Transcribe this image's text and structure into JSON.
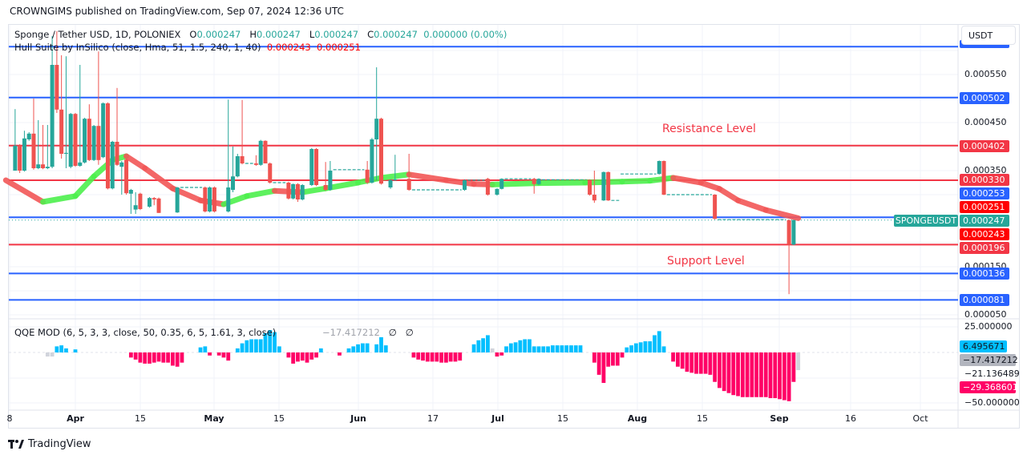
{
  "published": "CROWNGIMS published on TradingView.com, Sep 07, 2024 12:36 UTC",
  "legend": {
    "symbol": "Sponge / Tether USD, 1D, POLONIEX",
    "o_label": "O",
    "o": "0.000247",
    "h_label": "H",
    "h": "0.000247",
    "l_label": "L",
    "l": "0.000247",
    "c_label": "C",
    "c": "0.000247",
    "change": "0.000000 (0.00%)",
    "hull": "Hull Suite by InSilico (close, Hma, 51, 1.5, 240, 1, 40)",
    "hull_v1": "0.000243",
    "hull_v2": "0.000251",
    "qqe": "QQE MOD (6, 5, 3, 3, close, 50, 0.35, 6, 5, 1.61, 3, close)",
    "qqe_value": "−17.417212",
    "qqe_na1": "∅",
    "qqe_na2": "∅"
  },
  "currency_button": "USDT",
  "annotations": {
    "resistance": "Resistance Level",
    "support": "Support Level"
  },
  "symbol_tag": "SPONGEUSDT",
  "colors": {
    "up": "#26a69a",
    "down": "#ef5350",
    "hull_up": "#4cf04c",
    "hull_down": "#f25757",
    "blue_line": "#2962ff",
    "red_line": "#f23645",
    "qqe_up": "#00bfff",
    "qqe_down": "#ff0066",
    "qqe_neutral": "#d1d4dc"
  },
  "price_axis": {
    "labels": [
      "0.000550",
      "0.000450",
      "0.000350",
      "0.000150",
      "0.000050"
    ],
    "tags": [
      {
        "text": "0.000502",
        "kind": "blue"
      },
      {
        "text": "0.000402",
        "kind": "red"
      },
      {
        "text": "0.000330",
        "kind": "red"
      },
      {
        "text": "0.000253",
        "kind": "blue"
      },
      {
        "text": "0.000251",
        "kind": "hull"
      },
      {
        "text": "0.000247",
        "kind": "last"
      },
      {
        "text": "0.000243",
        "kind": "hull"
      },
      {
        "text": "0.000196",
        "kind": "red"
      },
      {
        "text": "0.000136",
        "kind": "blue"
      },
      {
        "text": "0.000081",
        "kind": "blue"
      }
    ]
  },
  "qqe_axis": {
    "labels": [
      "25.000000",
      "−21.136489",
      "−50.000000"
    ],
    "tags": [
      {
        "text": "6.495671",
        "kind": "up"
      },
      {
        "text": "−17.417212",
        "kind": "neutral"
      },
      {
        "text": "−29.368601",
        "kind": "down"
      }
    ]
  },
  "x_axis": [
    "8",
    "Apr",
    "15",
    "May",
    "15",
    "Jun",
    "17",
    "Jul",
    "15",
    "Aug",
    "15",
    "Sep",
    "16",
    "Oct"
  ],
  "footer_brand": "TradingView",
  "chart_data": {
    "type": "candlestick",
    "price_range": [
      4e-05,
      0.000615
    ],
    "horizontal_levels": [
      {
        "price": 0.000608,
        "color": "blue"
      },
      {
        "price": 0.000502,
        "color": "blue"
      },
      {
        "price": 0.000402,
        "color": "red"
      },
      {
        "price": 0.00033,
        "color": "red"
      },
      {
        "price": 0.000253,
        "color": "blue"
      },
      {
        "price": 0.000196,
        "color": "red"
      },
      {
        "price": 0.000136,
        "color": "blue"
      },
      {
        "price": 8.1e-05,
        "color": "blue"
      }
    ],
    "last_price": 0.000247,
    "candles_ohlc": [
      [
        "2024-03-19",
        0.00035,
        0.000478,
        0.00035,
        0.000402
      ],
      [
        "2024-03-20",
        0.000402,
        0.000405,
        0.000345,
        0.00035
      ],
      [
        "2024-03-21",
        0.00035,
        0.000433,
        0.000348,
        0.000417
      ],
      [
        "2024-03-22",
        0.000415,
        0.00043,
        0.000412,
        0.000427
      ],
      [
        "2024-03-23",
        0.000427,
        0.0005,
        0.000352,
        0.000355
      ],
      [
        "2024-03-24",
        0.000355,
        0.000455,
        0.000353,
        0.000363
      ],
      [
        "2024-03-25",
        0.000363,
        0.000445,
        0.000353,
        0.000355
      ],
      [
        "2024-03-26",
        0.000355,
        0.000445,
        0.000353,
        0.000358
      ],
      [
        "2024-03-27",
        0.000358,
        0.00063,
        0.000355,
        0.00057
      ],
      [
        "2024-03-28",
        0.00057,
        0.00064,
        0.00047,
        0.000477
      ],
      [
        "2024-03-29",
        0.000477,
        0.00059,
        0.000375,
        0.000385
      ],
      [
        "2024-03-30",
        0.000385,
        0.000588,
        0.000355,
        0.000387
      ],
      [
        "2024-03-31",
        0.000358,
        0.00047,
        0.000355,
        0.000468
      ],
      [
        "2024-04-01",
        0.000468,
        0.00047,
        0.000358,
        0.00036
      ],
      [
        "2024-04-02",
        0.00036,
        0.00057,
        0.000358,
        0.000367
      ],
      [
        "2024-04-03",
        0.000367,
        0.00046,
        0.000365,
        0.000458
      ],
      [
        "2024-04-04",
        0.000458,
        0.000488,
        0.00037,
        0.000372
      ],
      [
        "2024-04-05",
        0.000372,
        0.000445,
        0.00037,
        0.000443
      ],
      [
        "2024-04-06",
        0.000443,
        0.000598,
        0.000362,
        0.000372
      ],
      [
        "2024-04-07",
        0.000378,
        0.000492,
        0.000376,
        0.00049
      ],
      [
        "2024-04-08",
        0.00049,
        0.000492,
        0.000311,
        0.000313
      ],
      [
        "2024-04-09",
        0.000313,
        0.000412,
        0.000311,
        0.00041
      ],
      [
        "2024-04-10",
        0.00041,
        0.000522,
        0.00036,
        0.000362
      ],
      [
        "2024-04-11",
        0.000358,
        0.00037,
        0.0003,
        0.000367
      ],
      [
        "2024-04-12",
        0.000373,
        0.000375,
        0.0003,
        0.000303
      ],
      [
        "2024-04-13",
        0.000302,
        0.000312,
        0.00026,
        0.00031
      ],
      [
        "2024-04-14",
        0.000269,
        0.000305,
        0.00026,
        0.000278
      ],
      [
        "2024-04-15",
        0.000302,
        0.000304,
        0.000268,
        0.00027
      ],
      [
        "2024-04-17",
        0.000275,
        0.000295,
        0.000273,
        0.000293
      ],
      [
        "2024-04-18",
        0.000293,
        0.000295,
        0.000278,
        0.00029
      ],
      [
        "2024-04-19",
        0.000292,
        0.000294,
        0.000262,
        0.000262
      ],
      [
        "2024-04-23",
        0.000263,
        0.000316,
        0.000262,
        0.000315
      ],
      [
        "2024-04-29",
        0.000315,
        0.000317,
        0.000263,
        0.000265
      ],
      [
        "2024-04-30",
        0.000265,
        0.000317,
        0.000263,
        0.000315
      ],
      [
        "2024-05-01",
        0.000315,
        0.000317,
        0.000263,
        0.000265
      ],
      [
        "2024-05-04",
        0.000265,
        0.000498,
        0.000263,
        0.000315
      ],
      [
        "2024-05-05",
        0.00031,
        0.0004,
        0.000305,
        0.000338
      ],
      [
        "2024-05-06",
        0.000338,
        0.000385,
        0.000336,
        0.00038
      ],
      [
        "2024-05-07",
        0.00038,
        0.000497,
        0.000363,
        0.000365
      ],
      [
        "2024-05-10",
        0.000365,
        0.000382,
        0.00036,
        0.000362
      ],
      [
        "2024-05-11",
        0.000362,
        0.000414,
        0.00036,
        0.000412
      ],
      [
        "2024-05-12",
        0.000412,
        0.000413,
        0.000365,
        0.000365
      ],
      [
        "2024-05-13",
        0.000365,
        0.000367,
        0.000323,
        0.000325
      ],
      [
        "2024-05-17",
        0.000325,
        0.000327,
        0.00029,
        0.000292
      ],
      [
        "2024-05-18",
        0.000292,
        0.000323,
        0.00029,
        0.000322
      ],
      [
        "2024-05-19",
        0.000322,
        0.000324,
        0.000285,
        0.00029
      ],
      [
        "2024-05-20",
        0.00029,
        0.000322,
        0.000288,
        0.00032
      ],
      [
        "2024-05-22",
        0.00032,
        0.000397,
        0.000318,
        0.000395
      ],
      [
        "2024-05-23",
        0.000395,
        0.000397,
        0.000318,
        0.00032
      ],
      [
        "2024-05-25",
        0.00032,
        0.000368,
        0.000308,
        0.00031
      ],
      [
        "2024-05-26",
        0.00031,
        0.00037,
        0.000308,
        0.00035
      ],
      [
        "2024-06-03",
        0.000352,
        0.00037,
        0.000322,
        0.000325
      ],
      [
        "2024-06-04",
        0.000325,
        0.000418,
        0.000323,
        0.000415
      ],
      [
        "2024-06-05",
        0.000415,
        0.000565,
        0.00033,
        0.000458
      ],
      [
        "2024-06-06",
        0.000458,
        0.00046,
        0.000321,
        0.000323
      ],
      [
        "2024-06-08",
        0.000315,
        0.000332,
        0.000312,
        0.00033
      ],
      [
        "2024-06-09",
        0.00033,
        0.000383,
        0.000329,
        0.000332
      ],
      [
        "2024-06-12",
        0.000333,
        0.000385,
        0.000308,
        0.00031
      ],
      [
        "2024-06-24",
        0.00031,
        0.000332,
        0.000308,
        0.00033
      ],
      [
        "2024-06-29",
        0.000333,
        0.000335,
        0.000298,
        0.0003
      ],
      [
        "2024-07-01",
        0.0003,
        0.000313,
        0.000298,
        0.000312
      ],
      [
        "2024-07-02",
        0.000312,
        0.000334,
        0.000311,
        0.000333
      ],
      [
        "2024-07-09",
        0.000333,
        0.000335,
        0.000302,
        0.000322
      ],
      [
        "2024-07-10",
        0.000322,
        0.000334,
        0.00032,
        0.000333
      ],
      [
        "2024-07-21",
        0.00033,
        0.000332,
        0.000298,
        0.0003
      ],
      [
        "2024-07-22",
        0.0003,
        0.00035,
        0.000283,
        0.000288
      ],
      [
        "2024-07-24",
        0.000288,
        0.000348,
        0.000287,
        0.000347
      ],
      [
        "2024-07-25",
        0.000347,
        0.000348,
        0.000287,
        0.000288
      ],
      [
        "2024-08-05",
        0.000343,
        0.000371,
        0.000342,
        0.00037
      ],
      [
        "2024-08-06",
        0.00037,
        0.000371,
        0.000299,
        0.0003
      ],
      [
        "2024-08-17",
        0.0003,
        0.000301,
        0.000248,
        0.00025
      ],
      [
        "2024-09-02",
        0.000247,
        0.000248,
        9.3e-05,
        0.000196
      ],
      [
        "2024-09-03",
        0.000196,
        0.000248,
        0.000195,
        0.000247
      ]
    ],
    "flat_periods": [
      {
        "from": "2024-04-24",
        "to": "2024-04-28",
        "price": 0.000315
      },
      {
        "from": "2024-05-08",
        "to": "2024-05-09",
        "price": 0.000365
      },
      {
        "from": "2024-05-14",
        "to": "2024-05-16",
        "price": 0.000325
      },
      {
        "from": "2024-05-27",
        "to": "2024-06-02",
        "price": 0.000352
      },
      {
        "from": "2024-06-13",
        "to": "2024-06-23",
        "price": 0.00031
      },
      {
        "from": "2024-06-25",
        "to": "2024-06-28",
        "price": 0.00033
      },
      {
        "from": "2024-07-03",
        "to": "2024-07-08",
        "price": 0.000333
      },
      {
        "from": "2024-07-11",
        "to": "2024-07-20",
        "price": 0.000331
      },
      {
        "from": "2024-07-26",
        "to": "2024-07-27",
        "price": 0.000288
      },
      {
        "from": "2024-07-28",
        "to": "2024-08-04",
        "price": 0.000343
      },
      {
        "from": "2024-08-07",
        "to": "2024-08-16",
        "price": 0.0003
      },
      {
        "from": "2024-08-18",
        "to": "2024-09-01",
        "price": 0.000248
      }
    ],
    "hull": [
      [
        "2024-03-17",
        0.00033
      ],
      [
        "2024-03-25",
        0.000285
      ],
      [
        "2024-04-01",
        0.000297
      ],
      [
        "2024-04-05",
        0.000338
      ],
      [
        "2024-04-09",
        0.000372
      ],
      [
        "2024-04-12",
        0.00038
      ],
      [
        "2024-04-16",
        0.000355
      ],
      [
        "2024-04-22",
        0.000313
      ],
      [
        "2024-04-28",
        0.000288
      ],
      [
        "2024-05-03",
        0.00028
      ],
      [
        "2024-05-08",
        0.000297
      ],
      [
        "2024-05-14",
        0.000308
      ],
      [
        "2024-05-20",
        0.000305
      ],
      [
        "2024-05-25",
        0.000313
      ],
      [
        "2024-06-01",
        0.000325
      ],
      [
        "2024-06-06",
        0.000335
      ],
      [
        "2024-06-12",
        0.000342
      ],
      [
        "2024-06-20",
        0.00033
      ],
      [
        "2024-06-26",
        0.000322
      ],
      [
        "2024-06-30",
        0.000321
      ],
      [
        "2024-07-10",
        0.000324
      ],
      [
        "2024-07-20",
        0.000325
      ],
      [
        "2024-07-28",
        0.000327
      ],
      [
        "2024-08-03",
        0.000329
      ],
      [
        "2024-08-08",
        0.000335
      ],
      [
        "2024-08-14",
        0.000325
      ],
      [
        "2024-08-18",
        0.000312
      ],
      [
        "2024-08-22",
        0.000288
      ],
      [
        "2024-08-28",
        0.000268
      ],
      [
        "2024-09-04",
        0.000251
      ]
    ],
    "qqe_range": [
      -55,
      30
    ],
    "qqe_histogram": [
      {
        "start": "2024-03-26",
        "color": "neutral",
        "values": [
          -4,
          -4
        ]
      },
      {
        "start": "2024-03-28",
        "color": "up",
        "values": [
          6,
          7,
          4
        ]
      },
      {
        "start": "2024-04-01",
        "color": "up",
        "values": [
          3
        ]
      },
      {
        "start": "2024-04-13",
        "color": "down",
        "values": [
          -5,
          -7,
          -10,
          -11,
          -11,
          -10,
          -9,
          -10,
          -10,
          -13,
          -14,
          -10
        ]
      },
      {
        "start": "2024-04-28",
        "color": "up",
        "values": [
          5,
          6
        ]
      },
      {
        "start": "2024-04-30",
        "color": "down",
        "values": [
          -3
        ]
      },
      {
        "start": "2024-05-02",
        "color": "down",
        "values": [
          -3,
          -5,
          -8
        ]
      },
      {
        "start": "2024-05-06",
        "color": "up",
        "values": [
          4,
          9,
          12,
          13,
          13,
          13,
          19,
          22,
          20,
          6
        ]
      },
      {
        "start": "2024-05-17",
        "color": "down",
        "values": [
          -5,
          -11,
          -9,
          -8,
          -10,
          -7,
          -5
        ]
      },
      {
        "start": "2024-05-24",
        "color": "up",
        "values": [
          4
        ]
      },
      {
        "start": "2024-05-28",
        "color": "down",
        "values": [
          -3
        ]
      },
      {
        "start": "2024-05-30",
        "color": "up",
        "values": [
          4,
          6,
          8,
          9,
          9
        ]
      },
      {
        "start": "2024-06-05",
        "color": "up",
        "values": [
          8,
          15,
          7
        ]
      },
      {
        "start": "2024-06-13",
        "color": "down",
        "values": [
          -5,
          -7,
          -8,
          -9,
          -9,
          -9,
          -10,
          -10,
          -9,
          -9,
          -8
        ]
      },
      {
        "start": "2024-06-26",
        "color": "up",
        "values": [
          8,
          12,
          14,
          17
        ]
      },
      {
        "start": "2024-06-30",
        "color": "neutral",
        "values": [
          4
        ]
      },
      {
        "start": "2024-07-01",
        "color": "down",
        "values": [
          -4,
          -3
        ]
      },
      {
        "start": "2024-07-03",
        "color": "up",
        "values": [
          6,
          9,
          10,
          12,
          13,
          13,
          6,
          6,
          6,
          6,
          7,
          7,
          7,
          7,
          7,
          7,
          7
        ]
      },
      {
        "start": "2024-07-22",
        "color": "down",
        "values": [
          -10,
          -22,
          -30,
          -14,
          -13,
          -13,
          -5
        ]
      },
      {
        "start": "2024-07-29",
        "color": "up",
        "values": [
          5,
          7,
          9,
          10,
          11,
          11,
          17,
          21,
          6
        ]
      },
      {
        "start": "2024-08-08",
        "color": "down",
        "values": [
          -9,
          -14,
          -16,
          -19,
          -20,
          -21,
          -21,
          -21,
          -22,
          -29,
          -35,
          -38,
          -40,
          -42,
          -43,
          -44,
          -44,
          -44,
          -44,
          -44,
          -44,
          -45,
          -45,
          -46,
          -47,
          -48,
          -29
        ]
      },
      {
        "start": "2024-09-04",
        "color": "neutral",
        "values": [
          -17.4
        ]
      }
    ]
  }
}
